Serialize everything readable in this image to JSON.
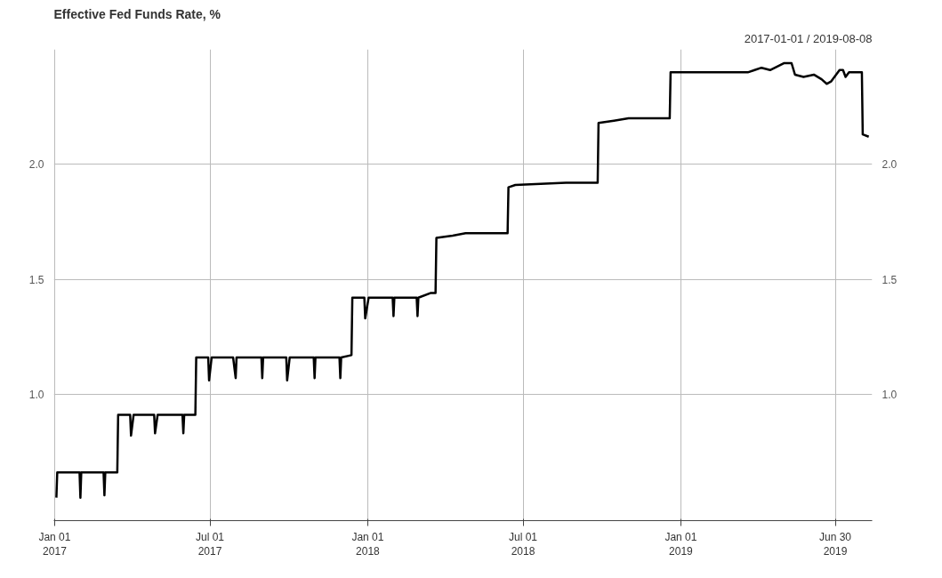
{
  "chart_data": {
    "type": "line",
    "title": "Effective Fed Funds Rate, %",
    "subtitle": "2017-01-01 / 2019-08-08",
    "x": [
      "2017-01-03",
      "2017-01-04",
      "2017-01-30",
      "2017-01-31",
      "2017-02-01",
      "2017-02-27",
      "2017-02-28",
      "2017-03-01",
      "2017-03-15",
      "2017-03-16",
      "2017-03-30",
      "2017-03-31",
      "2017-04-03",
      "2017-04-27",
      "2017-04-28",
      "2017-05-01",
      "2017-05-30",
      "2017-05-31",
      "2017-06-01",
      "2017-06-14",
      "2017-06-15",
      "2017-06-29",
      "2017-06-30",
      "2017-07-03",
      "2017-07-28",
      "2017-07-31",
      "2017-08-01",
      "2017-08-30",
      "2017-08-31",
      "2017-09-01",
      "2017-09-28",
      "2017-09-29",
      "2017-10-02",
      "2017-10-30",
      "2017-10-31",
      "2017-11-01",
      "2017-11-29",
      "2017-11-30",
      "2017-12-01",
      "2017-12-13",
      "2017-12-14",
      "2017-12-28",
      "2017-12-29",
      "2018-01-02",
      "2018-01-30",
      "2018-01-31",
      "2018-02-01",
      "2018-02-27",
      "2018-02-28",
      "2018-03-01",
      "2018-03-15",
      "2018-03-21",
      "2018-03-22",
      "2018-04-10",
      "2018-04-25",
      "2018-06-13",
      "2018-06-14",
      "2018-06-22",
      "2018-08-20",
      "2018-09-26",
      "2018-09-27",
      "2018-10-15",
      "2018-11-01",
      "2018-12-19",
      "2018-12-20",
      "2019-03-20",
      "2019-03-28",
      "2019-04-05",
      "2019-04-15",
      "2019-05-01",
      "2019-05-10",
      "2019-05-14",
      "2019-05-24",
      "2019-06-05",
      "2019-06-14",
      "2019-06-20",
      "2019-06-25",
      "2019-07-05",
      "2019-07-09",
      "2019-07-12",
      "2019-07-16",
      "2019-07-31",
      "2019-08-01",
      "2019-08-08"
    ],
    "series": [
      {
        "color": "#000000",
        "values": [
          0.55,
          0.66,
          0.66,
          0.55,
          0.66,
          0.66,
          0.56,
          0.66,
          0.66,
          0.91,
          0.91,
          0.82,
          0.91,
          0.91,
          0.83,
          0.91,
          0.91,
          0.83,
          0.91,
          0.91,
          1.16,
          1.16,
          1.06,
          1.16,
          1.16,
          1.07,
          1.16,
          1.16,
          1.07,
          1.16,
          1.16,
          1.06,
          1.16,
          1.16,
          1.07,
          1.16,
          1.16,
          1.07,
          1.16,
          1.17,
          1.42,
          1.42,
          1.33,
          1.42,
          1.42,
          1.34,
          1.42,
          1.42,
          1.34,
          1.42,
          1.44,
          1.44,
          1.68,
          1.69,
          1.7,
          1.7,
          1.9,
          1.91,
          1.92,
          1.92,
          2.18,
          2.19,
          2.2,
          2.2,
          2.4,
          2.4,
          2.41,
          2.42,
          2.41,
          2.44,
          2.44,
          2.39,
          2.38,
          2.39,
          2.37,
          2.35,
          2.36,
          2.41,
          2.41,
          2.38,
          2.4,
          2.4,
          2.13,
          2.12
        ]
      }
    ],
    "xlim": [
      "2016-12-31",
      "2019-08-12"
    ],
    "xticks": [
      {
        "value": "2017-01-01",
        "label": "Jan 01\n2017"
      },
      {
        "value": "2017-07-01",
        "label": "Jul 01\n2017"
      },
      {
        "value": "2018-01-01",
        "label": "Jan 01\n2018"
      },
      {
        "value": "2018-07-01",
        "label": "Jul 01\n2018"
      },
      {
        "value": "2019-01-01",
        "label": "Jan 01\n2019"
      },
      {
        "value": "2019-06-30",
        "label": "Jun 30\n2019"
      }
    ],
    "ylim": [
      0.45,
      2.5
    ],
    "yticks": [
      {
        "value": 1,
        "label": "1.0"
      },
      {
        "value": 1.5,
        "label": "1.5"
      },
      {
        "value": 2,
        "label": "2.0"
      }
    ],
    "y2lim": [
      0.45,
      2.5
    ],
    "y2ticks": [
      {
        "value": 1,
        "label": "1.0"
      },
      {
        "value": 1.5,
        "label": "1.5"
      },
      {
        "value": 2,
        "label": "2.0"
      }
    ],
    "grid": true,
    "marker": "none",
    "line_style": "solid"
  }
}
